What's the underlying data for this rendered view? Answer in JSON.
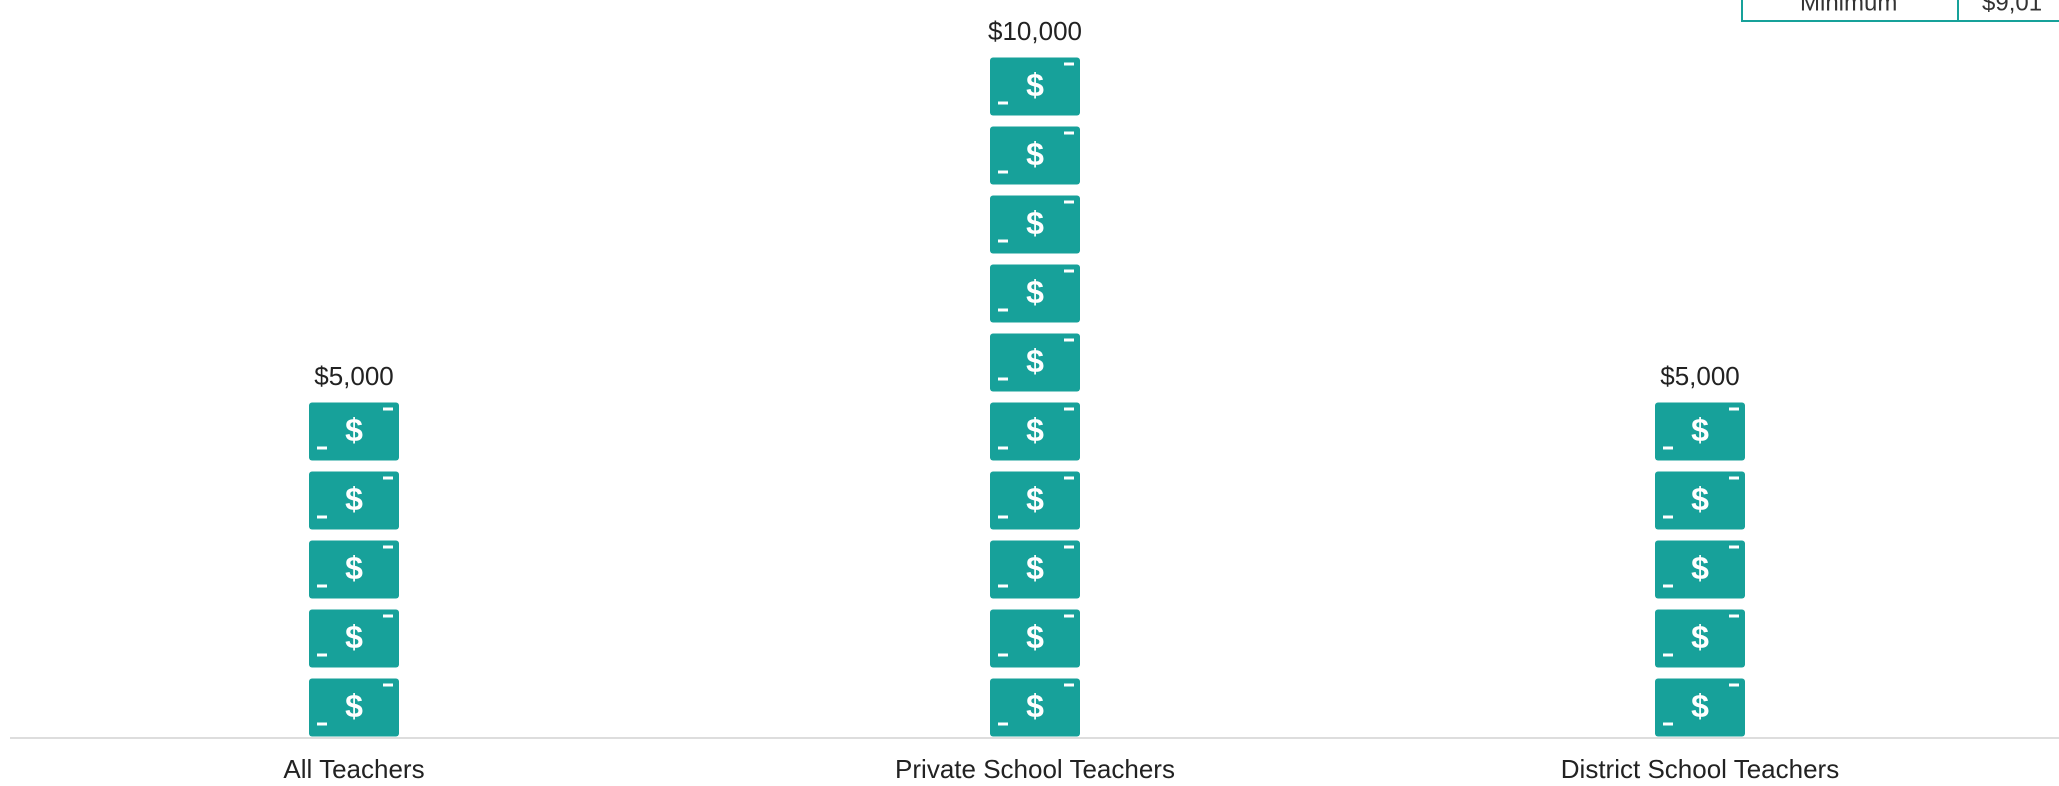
{
  "chart_data": {
    "type": "pictograph",
    "categories": [
      "All Teachers",
      "Private School Teachers",
      "District School Teachers"
    ],
    "values": [
      5000,
      10000,
      5000
    ],
    "value_labels": [
      "$5,000",
      "$10,000",
      "$5,000"
    ],
    "color": "#17a19a"
  },
  "table": {
    "rows": [
      [
        "Minimum",
        "$9,01"
      ]
    ]
  }
}
